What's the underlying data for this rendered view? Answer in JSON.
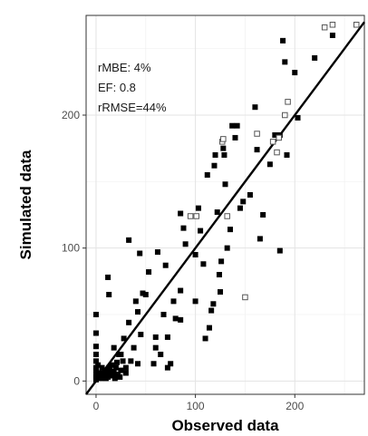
{
  "chart_data": {
    "type": "scatter",
    "xlabel": "Observed data",
    "ylabel": "Simulated data",
    "xlim": [
      -10,
      270
    ],
    "ylim": [
      -10,
      275
    ],
    "x_ticks": [
      0,
      100,
      200
    ],
    "y_ticks": [
      0,
      100,
      200
    ],
    "annotations": [
      "rMBE: 4%",
      "EF: 0.8",
      "rRMSE=44%"
    ],
    "grid": true,
    "legend": "none",
    "reference_line": {
      "type": "identity",
      "color": "#000000"
    },
    "series": [
      {
        "marker": "filled-square",
        "color": "#000000",
        "points": [
          [
            0,
            50
          ],
          [
            0,
            36
          ],
          [
            0,
            26
          ],
          [
            0,
            20
          ],
          [
            0,
            15
          ],
          [
            0,
            10
          ],
          [
            0,
            8
          ],
          [
            0,
            5
          ],
          [
            0,
            3
          ],
          [
            0,
            1
          ],
          [
            2,
            12
          ],
          [
            3,
            6
          ],
          [
            4,
            3
          ],
          [
            5,
            2
          ],
          [
            6,
            10
          ],
          [
            7,
            6
          ],
          [
            8,
            4
          ],
          [
            9,
            8
          ],
          [
            10,
            2
          ],
          [
            11,
            6
          ],
          [
            12,
            3
          ],
          [
            13,
            10
          ],
          [
            14,
            8
          ],
          [
            15,
            5
          ],
          [
            16,
            12
          ],
          [
            17,
            4
          ],
          [
            18,
            7
          ],
          [
            19,
            2
          ],
          [
            20,
            10
          ],
          [
            21,
            14
          ],
          [
            22,
            5
          ],
          [
            23,
            20
          ],
          [
            24,
            3
          ],
          [
            25,
            8
          ],
          [
            27,
            15
          ],
          [
            28,
            32
          ],
          [
            30,
            6
          ],
          [
            12,
            78
          ],
          [
            13,
            65
          ],
          [
            18,
            25
          ],
          [
            25,
            20
          ],
          [
            30,
            10
          ],
          [
            33,
            106
          ],
          [
            33,
            44
          ],
          [
            35,
            15
          ],
          [
            38,
            25
          ],
          [
            40,
            60
          ],
          [
            42,
            13
          ],
          [
            42,
            52
          ],
          [
            44,
            96
          ],
          [
            45,
            35
          ],
          [
            47,
            66
          ],
          [
            50,
            65
          ],
          [
            53,
            82
          ],
          [
            58,
            13
          ],
          [
            60,
            25
          ],
          [
            60,
            33
          ],
          [
            62,
            97
          ],
          [
            65,
            20
          ],
          [
            68,
            50
          ],
          [
            70,
            87
          ],
          [
            72,
            33
          ],
          [
            72,
            10
          ],
          [
            75,
            13
          ],
          [
            78,
            60
          ],
          [
            80,
            47
          ],
          [
            85,
            126
          ],
          [
            85,
            68
          ],
          [
            85,
            46
          ],
          [
            88,
            115
          ],
          [
            90,
            103
          ],
          [
            100,
            95
          ],
          [
            100,
            60
          ],
          [
            103,
            130
          ],
          [
            105,
            113
          ],
          [
            108,
            88
          ],
          [
            110,
            32
          ],
          [
            112,
            155
          ],
          [
            114,
            40
          ],
          [
            116,
            53
          ],
          [
            118,
            58
          ],
          [
            119,
            162
          ],
          [
            120,
            170
          ],
          [
            122,
            127
          ],
          [
            124,
            80
          ],
          [
            125,
            67
          ],
          [
            126,
            90
          ],
          [
            128,
            175
          ],
          [
            129,
            170
          ],
          [
            130,
            148
          ],
          [
            132,
            100
          ],
          [
            135,
            114
          ],
          [
            137,
            192
          ],
          [
            140,
            183
          ],
          [
            142,
            192
          ],
          [
            145,
            130
          ],
          [
            148,
            135
          ],
          [
            155,
            140
          ],
          [
            160,
            206
          ],
          [
            162,
            174
          ],
          [
            165,
            107
          ],
          [
            168,
            125
          ],
          [
            175,
            163
          ],
          [
            180,
            185
          ],
          [
            185,
            185
          ],
          [
            185,
            98
          ],
          [
            188,
            256
          ],
          [
            190,
            240
          ],
          [
            192,
            170
          ],
          [
            200,
            232
          ],
          [
            203,
            198
          ],
          [
            220,
            243
          ],
          [
            238,
            260
          ]
        ]
      },
      {
        "marker": "hollow-square",
        "color": "#555555",
        "points": [
          [
            95,
            124
          ],
          [
            101,
            124
          ],
          [
            127,
            180
          ],
          [
            128,
            182
          ],
          [
            132,
            124
          ],
          [
            150,
            63
          ],
          [
            162,
            186
          ],
          [
            178,
            180
          ],
          [
            182,
            172
          ],
          [
            184,
            183
          ],
          [
            190,
            200
          ],
          [
            193,
            210
          ],
          [
            230,
            266
          ],
          [
            238,
            268
          ],
          [
            262,
            268
          ]
        ]
      }
    ]
  }
}
